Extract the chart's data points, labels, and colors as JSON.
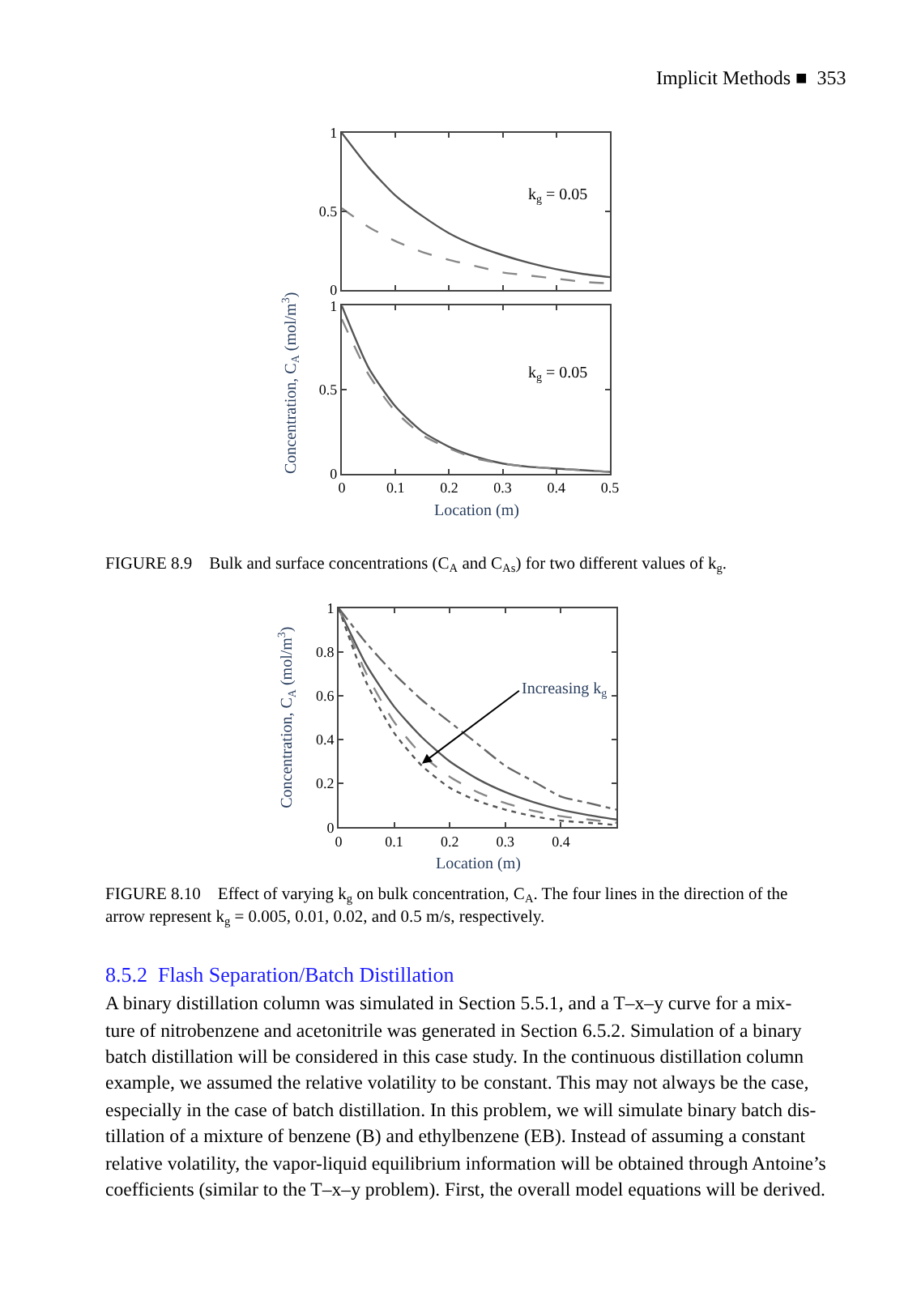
{
  "chart_data": [
    {
      "type": "line",
      "ylabel": "Concentration, C$_{A}$ (mol/m$^{3}$)",
      "x": [
        0,
        0.05,
        0.1,
        0.15,
        0.2,
        0.25,
        0.3,
        0.35,
        0.4,
        0.45,
        0.5
      ],
      "xlim": [
        0,
        0.5
      ],
      "xticks": [
        0,
        0.1,
        0.2,
        0.3,
        0.4,
        0.5
      ],
      "ylim": [
        0,
        1
      ],
      "yticks": [
        0,
        0.5,
        1
      ],
      "tick_labels": "y",
      "series": [
        {
          "color": "#555555",
          "line_style": "solid",
          "values": [
            1,
            0.78,
            0.6,
            0.47,
            0.36,
            0.28,
            0.22,
            0.17,
            0.13,
            0.1,
            0.08
          ]
        },
        {
          "color": "#888888",
          "line_style": "dashed",
          "values": [
            0.52,
            0.4,
            0.31,
            0.24,
            0.19,
            0.15,
            0.11,
            0.09,
            0.07,
            0.05,
            0.04
          ]
        }
      ],
      "annotations": [
        "Implicit Methods ■  353",
        "k$_{g}$ = 0.05"
      ]
    },
    {
      "type": "line",
      "xlabel": "Location (m)",
      "x": [
        0,
        0.05,
        0.1,
        0.15,
        0.2,
        0.25,
        0.3,
        0.35,
        0.4,
        0.45,
        0.5
      ],
      "xlim": [
        0,
        0.5
      ],
      "xticks": [
        0,
        0.1,
        0.2,
        0.3,
        0.4,
        0.5
      ],
      "ylim": [
        0,
        1
      ],
      "yticks": [
        0,
        0.5,
        1
      ],
      "series": [
        {
          "color": "#555555",
          "line_style": "solid",
          "values": [
            1,
            0.63,
            0.4,
            0.25,
            0.16,
            0.1,
            0.06,
            0.04,
            0.03,
            0.02,
            0.01
          ]
        },
        {
          "color": "#888888",
          "line_style": "dashed",
          "values": [
            0.92,
            0.59,
            0.37,
            0.23,
            0.15,
            0.09,
            0.06,
            0.04,
            0.03,
            0.02,
            0.01
          ]
        }
      ],
      "annotations": [
        "k$_{g}$ = 0.05",
        "FIGURE 8.9    Bulk and surface concentrations (C$_{A}$ and C$_{As}$) for two different values of k$_{g}$."
      ]
    },
    {
      "type": "line",
      "xlabel": "Location (m)",
      "ylabel": "Concentration, C$_{A}$ (mol/m$^{3}$)",
      "x": [
        0,
        0.05,
        0.1,
        0.15,
        0.2,
        0.25,
        0.3,
        0.35,
        0.4,
        0.45,
        0.5
      ],
      "xlim": [
        0,
        0.5
      ],
      "xticks": [
        0,
        0.1,
        0.2,
        0.3,
        0.4
      ],
      "ylim": [
        0,
        1
      ],
      "yticks": [
        0,
        0.2,
        0.4,
        0.6,
        0.8,
        1
      ],
      "series": [
        {
          "color": "#666666",
          "line_style": "dashdot",
          "values": [
            1,
            0.84,
            0.7,
            0.58,
            0.48,
            0.38,
            0.28,
            0.21,
            0.14,
            0.11,
            0.08
          ]
        },
        {
          "color": "#555555",
          "line_style": "solid",
          "values": [
            1,
            0.74,
            0.55,
            0.41,
            0.3,
            0.22,
            0.16,
            0.115,
            0.08,
            0.055,
            0.035
          ]
        },
        {
          "color": "#888888",
          "line_style": "dashed",
          "values": [
            1,
            0.7,
            0.48,
            0.33,
            0.23,
            0.16,
            0.11,
            0.075,
            0.05,
            0.035,
            0.02
          ]
        },
        {
          "color": "#555555",
          "line_style": "dotted",
          "values": [
            1,
            0.66,
            0.43,
            0.28,
            0.18,
            0.12,
            0.08,
            0.05,
            0.03,
            0.02,
            0.01
          ]
        }
      ],
      "annotations": [
        {
          "text": "Increasing k$_{g}$",
          "x": 0.15,
          "y": 0.29
        },
        "FIGURE 8.10    Effect of varying k$_{g}$ on bulk concentration, C$_{A}$. The four lines in the direction of the",
        "arrow represent k$_{g}$ = 0.005, 0.01, 0.02, and 0.5 m/s, respectively.",
        "8.5.2  Flash Separation/Batch Distillation",
        "A binary distillation column was simulated in Section 5.5.1, and a T–x–y curve for a mix-",
        "ture of nitrobenzene and acetonitrile was generated in Section 6.5.2. Simulation of a binary",
        "batch distillation will be considered in this case study. In the continuous distillation column",
        "example, we assumed the relative volatility to be constant. This may not always be the case,",
        "especially in the case of batch distillation. In this problem, we will simulate binary batch dis-",
        "tillation of a mixture of benzene (B) and ethylbenzene (EB). Instead of assuming a constant",
        "relative volatility, the vapor-liquid equilibrium information will be obtained through Antoine’s",
        "coefficients (similar to the T–x–y problem). First, the overall model equations will be derived."
      ]
    }
  ]
}
